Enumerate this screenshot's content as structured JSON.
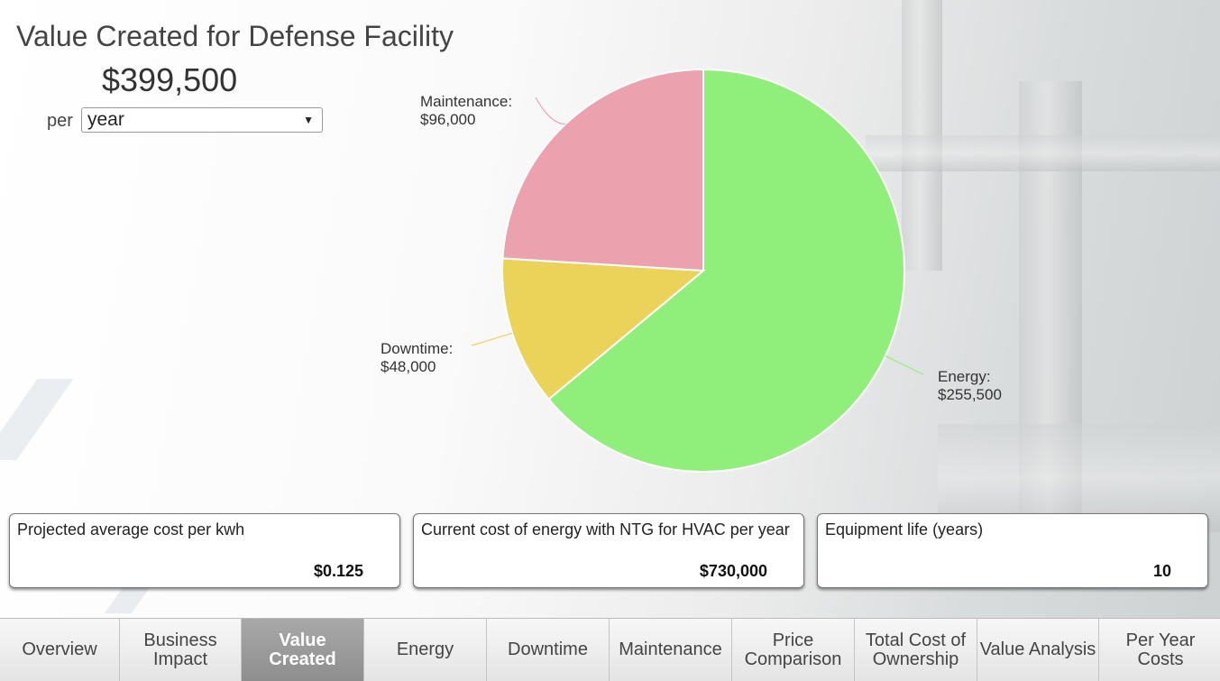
{
  "header": {
    "title": "Value Created for Defense Facility",
    "total": "$399,500",
    "per_label": "per",
    "period_selected": "year"
  },
  "chart_data": {
    "type": "pie",
    "slices": [
      {
        "name": "Energy",
        "value": 255500,
        "label": "Energy:",
        "value_label": "$255,500",
        "color": "#90ee7b"
      },
      {
        "name": "Downtime",
        "value": 48000,
        "label": "Downtime:",
        "value_label": "$48,000",
        "color": "#ebd35a"
      },
      {
        "name": "Maintenance",
        "value": 96000,
        "label": "Maintenance:",
        "value_label": "$96,000",
        "color": "#eca1ae"
      }
    ]
  },
  "cards": [
    {
      "label": "Projected average cost per kwh",
      "value": "$0.125"
    },
    {
      "label": "Current cost of energy with NTG for HVAC per year",
      "value": "$730,000"
    },
    {
      "label": "Equipment life (years)",
      "value": "10"
    }
  ],
  "tabs": [
    {
      "label": "Overview",
      "active": false
    },
    {
      "label": "Business Impact",
      "active": false
    },
    {
      "label": "Value Created",
      "active": true
    },
    {
      "label": "Energy",
      "active": false
    },
    {
      "label": "Downtime",
      "active": false
    },
    {
      "label": "Maintenance",
      "active": false
    },
    {
      "label": "Price Comparison",
      "active": false
    },
    {
      "label": "Total Cost of Ownership",
      "active": false
    },
    {
      "label": "Value Analysis",
      "active": false
    },
    {
      "label": "Per Year Costs",
      "active": false
    }
  ]
}
